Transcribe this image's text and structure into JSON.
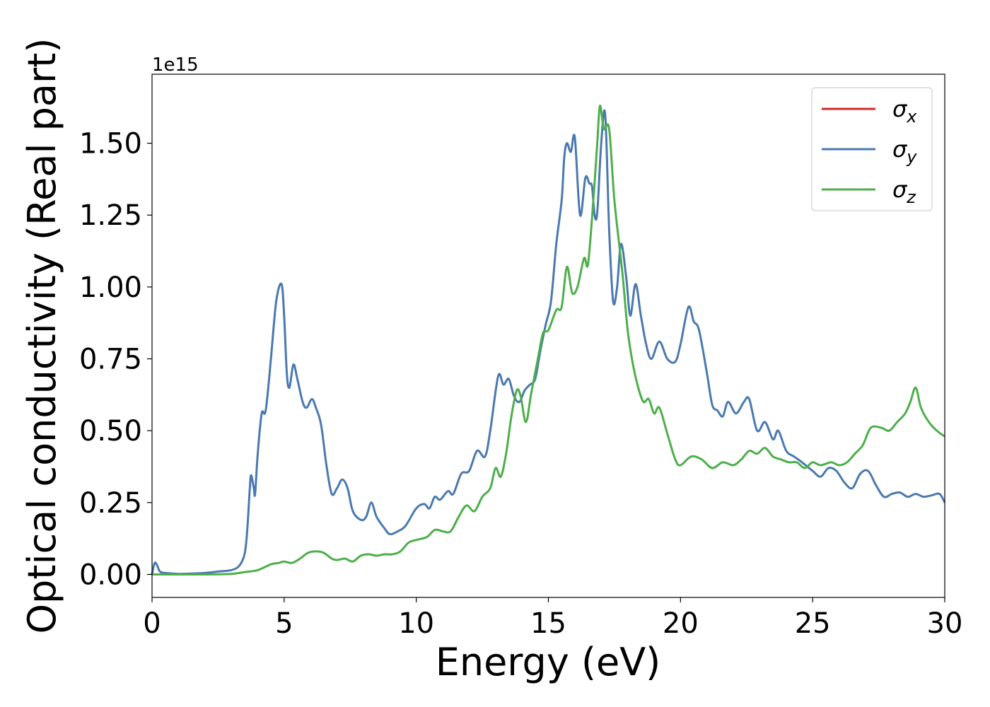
{
  "chart_data": {
    "type": "line",
    "title": "",
    "xlabel": "Energy (eV)",
    "ylabel": "Optical conductivity (Real part)",
    "y_offset_label": "1e15",
    "xlim": [
      0,
      30
    ],
    "ylim": [
      -0.08,
      1.74
    ],
    "x_ticks": [
      0,
      5,
      10,
      15,
      20,
      25,
      30
    ],
    "x_tick_labels": [
      "0",
      "5",
      "10",
      "15",
      "20",
      "25",
      "30"
    ],
    "y_ticks": [
      0.0,
      0.25,
      0.5,
      0.75,
      1.0,
      1.25,
      1.5
    ],
    "y_tick_labels": [
      "0.00",
      "0.25",
      "0.50",
      "0.75",
      "1.00",
      "1.25",
      "1.50"
    ],
    "grid": false,
    "legend_position": "top-right",
    "legend": [
      {
        "name": "σ",
        "sub": "x",
        "color": "#d62728"
      },
      {
        "name": "σ",
        "sub": "y",
        "color": "#4a79b0"
      },
      {
        "name": "σ",
        "sub": "z",
        "color": "#4daf4a"
      }
    ],
    "series": [
      {
        "key": "sigma_y",
        "color": "#4a79b0",
        "points": [
          [
            0,
            0.0
          ],
          [
            0.1,
            0.04
          ],
          [
            0.2,
            0.03
          ],
          [
            0.3,
            0.01
          ],
          [
            0.5,
            0.005
          ],
          [
            1.0,
            0.002
          ],
          [
            1.5,
            0.003
          ],
          [
            2.0,
            0.005
          ],
          [
            2.5,
            0.01
          ],
          [
            3.0,
            0.015
          ],
          [
            3.3,
            0.03
          ],
          [
            3.5,
            0.07
          ],
          [
            3.6,
            0.15
          ],
          [
            3.7,
            0.3
          ],
          [
            3.75,
            0.345
          ],
          [
            3.85,
            0.3
          ],
          [
            3.9,
            0.28
          ],
          [
            4.0,
            0.42
          ],
          [
            4.15,
            0.56
          ],
          [
            4.3,
            0.57
          ],
          [
            4.5,
            0.75
          ],
          [
            4.7,
            0.95
          ],
          [
            4.9,
            1.01
          ],
          [
            5.0,
            0.9
          ],
          [
            5.1,
            0.7
          ],
          [
            5.2,
            0.65
          ],
          [
            5.35,
            0.73
          ],
          [
            5.5,
            0.68
          ],
          [
            5.7,
            0.6
          ],
          [
            5.85,
            0.58
          ],
          [
            6.05,
            0.61
          ],
          [
            6.2,
            0.58
          ],
          [
            6.4,
            0.52
          ],
          [
            6.6,
            0.38
          ],
          [
            6.8,
            0.28
          ],
          [
            7.0,
            0.3
          ],
          [
            7.2,
            0.33
          ],
          [
            7.4,
            0.3
          ],
          [
            7.6,
            0.22
          ],
          [
            7.9,
            0.19
          ],
          [
            8.1,
            0.2
          ],
          [
            8.3,
            0.25
          ],
          [
            8.5,
            0.2
          ],
          [
            8.8,
            0.16
          ],
          [
            9.0,
            0.14
          ],
          [
            9.3,
            0.15
          ],
          [
            9.6,
            0.17
          ],
          [
            10.0,
            0.23
          ],
          [
            10.3,
            0.245
          ],
          [
            10.5,
            0.23
          ],
          [
            10.7,
            0.27
          ],
          [
            10.9,
            0.26
          ],
          [
            11.2,
            0.29
          ],
          [
            11.4,
            0.28
          ],
          [
            11.7,
            0.35
          ],
          [
            12.0,
            0.36
          ],
          [
            12.3,
            0.43
          ],
          [
            12.6,
            0.41
          ],
          [
            12.8,
            0.5
          ],
          [
            13.1,
            0.69
          ],
          [
            13.3,
            0.66
          ],
          [
            13.5,
            0.68
          ],
          [
            13.7,
            0.62
          ],
          [
            13.9,
            0.6
          ],
          [
            14.1,
            0.64
          ],
          [
            14.3,
            0.66
          ],
          [
            14.5,
            0.68
          ],
          [
            14.7,
            0.78
          ],
          [
            14.9,
            0.87
          ],
          [
            15.1,
            0.95
          ],
          [
            15.3,
            1.15
          ],
          [
            15.5,
            1.3
          ],
          [
            15.6,
            1.45
          ],
          [
            15.7,
            1.5
          ],
          [
            15.85,
            1.47
          ],
          [
            16.0,
            1.52
          ],
          [
            16.2,
            1.25
          ],
          [
            16.4,
            1.38
          ],
          [
            16.55,
            1.36
          ],
          [
            16.65,
            1.35
          ],
          [
            16.75,
            1.25
          ],
          [
            16.85,
            1.26
          ],
          [
            17.0,
            1.5
          ],
          [
            17.15,
            1.6
          ],
          [
            17.3,
            1.2
          ],
          [
            17.45,
            0.95
          ],
          [
            17.6,
            1.0
          ],
          [
            17.75,
            1.15
          ],
          [
            17.95,
            1.03
          ],
          [
            18.1,
            0.9
          ],
          [
            18.3,
            1.01
          ],
          [
            18.5,
            0.9
          ],
          [
            18.7,
            0.8
          ],
          [
            18.9,
            0.75
          ],
          [
            19.2,
            0.81
          ],
          [
            19.5,
            0.75
          ],
          [
            19.8,
            0.74
          ],
          [
            20.0,
            0.8
          ],
          [
            20.3,
            0.93
          ],
          [
            20.5,
            0.88
          ],
          [
            20.7,
            0.85
          ],
          [
            21.0,
            0.7
          ],
          [
            21.2,
            0.59
          ],
          [
            21.4,
            0.57
          ],
          [
            21.6,
            0.55
          ],
          [
            21.8,
            0.6
          ],
          [
            22.1,
            0.56
          ],
          [
            22.4,
            0.6
          ],
          [
            22.6,
            0.61
          ],
          [
            22.9,
            0.5
          ],
          [
            23.2,
            0.53
          ],
          [
            23.5,
            0.47
          ],
          [
            23.7,
            0.5
          ],
          [
            24.0,
            0.43
          ],
          [
            24.3,
            0.41
          ],
          [
            24.6,
            0.39
          ],
          [
            25.0,
            0.36
          ],
          [
            25.3,
            0.34
          ],
          [
            25.6,
            0.37
          ],
          [
            25.9,
            0.36
          ],
          [
            26.2,
            0.32
          ],
          [
            26.5,
            0.3
          ],
          [
            26.8,
            0.35
          ],
          [
            27.1,
            0.36
          ],
          [
            27.4,
            0.31
          ],
          [
            27.7,
            0.27
          ],
          [
            28.0,
            0.28
          ],
          [
            28.3,
            0.285
          ],
          [
            28.6,
            0.27
          ],
          [
            28.9,
            0.28
          ],
          [
            29.2,
            0.27
          ],
          [
            29.5,
            0.275
          ],
          [
            29.8,
            0.28
          ],
          [
            30.0,
            0.25
          ]
        ]
      },
      {
        "key": "sigma_z",
        "color": "#4daf4a",
        "points": [
          [
            0,
            0.0
          ],
          [
            1.0,
            0.0
          ],
          [
            2.0,
            0.0
          ],
          [
            3.0,
            0.002
          ],
          [
            3.5,
            0.008
          ],
          [
            4.0,
            0.015
          ],
          [
            4.5,
            0.035
          ],
          [
            4.8,
            0.04
          ],
          [
            5.0,
            0.045
          ],
          [
            5.3,
            0.04
          ],
          [
            5.6,
            0.055
          ],
          [
            5.9,
            0.075
          ],
          [
            6.2,
            0.08
          ],
          [
            6.5,
            0.075
          ],
          [
            6.8,
            0.055
          ],
          [
            7.0,
            0.05
          ],
          [
            7.3,
            0.055
          ],
          [
            7.6,
            0.045
          ],
          [
            7.9,
            0.065
          ],
          [
            8.2,
            0.07
          ],
          [
            8.5,
            0.065
          ],
          [
            8.8,
            0.07
          ],
          [
            9.1,
            0.07
          ],
          [
            9.4,
            0.08
          ],
          [
            9.7,
            0.11
          ],
          [
            10.0,
            0.12
          ],
          [
            10.4,
            0.13
          ],
          [
            10.7,
            0.155
          ],
          [
            11.0,
            0.15
          ],
          [
            11.3,
            0.15
          ],
          [
            11.6,
            0.2
          ],
          [
            11.9,
            0.24
          ],
          [
            12.2,
            0.22
          ],
          [
            12.5,
            0.27
          ],
          [
            12.8,
            0.3
          ],
          [
            13.0,
            0.37
          ],
          [
            13.2,
            0.34
          ],
          [
            13.4,
            0.42
          ],
          [
            13.6,
            0.55
          ],
          [
            13.8,
            0.64
          ],
          [
            13.95,
            0.62
          ],
          [
            14.15,
            0.53
          ],
          [
            14.35,
            0.63
          ],
          [
            14.6,
            0.75
          ],
          [
            14.8,
            0.84
          ],
          [
            15.0,
            0.85
          ],
          [
            15.3,
            0.92
          ],
          [
            15.5,
            0.93
          ],
          [
            15.7,
            1.07
          ],
          [
            15.9,
            0.98
          ],
          [
            16.1,
            1.0
          ],
          [
            16.35,
            1.1
          ],
          [
            16.5,
            1.08
          ],
          [
            16.7,
            1.3
          ],
          [
            16.85,
            1.5
          ],
          [
            16.95,
            1.63
          ],
          [
            17.1,
            1.55
          ],
          [
            17.3,
            1.55
          ],
          [
            17.5,
            1.3
          ],
          [
            17.8,
            1.05
          ],
          [
            18.0,
            0.85
          ],
          [
            18.2,
            0.73
          ],
          [
            18.4,
            0.65
          ],
          [
            18.6,
            0.6
          ],
          [
            18.8,
            0.61
          ],
          [
            19.0,
            0.56
          ],
          [
            19.2,
            0.58
          ],
          [
            19.5,
            0.49
          ],
          [
            19.8,
            0.4
          ],
          [
            20.0,
            0.38
          ],
          [
            20.4,
            0.41
          ],
          [
            20.8,
            0.4
          ],
          [
            21.2,
            0.37
          ],
          [
            21.6,
            0.39
          ],
          [
            22.0,
            0.38
          ],
          [
            22.3,
            0.4
          ],
          [
            22.6,
            0.43
          ],
          [
            22.9,
            0.42
          ],
          [
            23.2,
            0.44
          ],
          [
            23.5,
            0.41
          ],
          [
            23.8,
            0.4
          ],
          [
            24.1,
            0.39
          ],
          [
            24.4,
            0.39
          ],
          [
            24.7,
            0.37
          ],
          [
            25.0,
            0.39
          ],
          [
            25.3,
            0.38
          ],
          [
            25.7,
            0.39
          ],
          [
            26.0,
            0.38
          ],
          [
            26.3,
            0.39
          ],
          [
            26.6,
            0.42
          ],
          [
            26.9,
            0.45
          ],
          [
            27.2,
            0.51
          ],
          [
            27.6,
            0.51
          ],
          [
            27.9,
            0.5
          ],
          [
            28.2,
            0.53
          ],
          [
            28.5,
            0.56
          ],
          [
            28.7,
            0.6
          ],
          [
            28.9,
            0.65
          ],
          [
            29.1,
            0.58
          ],
          [
            29.4,
            0.53
          ],
          [
            29.7,
            0.5
          ],
          [
            30.0,
            0.48
          ]
        ]
      }
    ]
  }
}
